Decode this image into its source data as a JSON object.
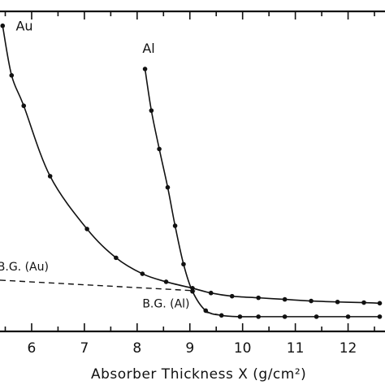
{
  "chart_data": {
    "type": "line",
    "xlabel": "Absorber Thickness X (g/cm²)",
    "x_tick_labels": [
      "6",
      "7",
      "8",
      "9",
      "10",
      "11",
      "12"
    ],
    "xlim": [
      5.4,
      12.7
    ],
    "ylim": [
      0,
      100
    ],
    "grid": false,
    "series": [
      {
        "name": "Au",
        "style": "solid-with-points",
        "x": [
          5.45,
          5.62,
          5.85,
          6.35,
          7.05,
          7.6,
          8.1,
          8.55,
          9.05,
          9.4,
          9.8,
          10.3,
          10.8,
          11.3,
          11.8,
          12.3,
          12.6
        ],
        "y": [
          95.5,
          80.0,
          70.5,
          48.5,
          32.0,
          23.0,
          18.0,
          15.5,
          13.5,
          12.0,
          11.0,
          10.5,
          10.0,
          9.5,
          9.2,
          9.0,
          8.8
        ]
      },
      {
        "name": "Al",
        "style": "solid-with-points",
        "x": [
          8.15,
          8.27,
          8.42,
          8.58,
          8.72,
          8.88,
          9.05,
          9.3,
          9.6,
          9.95,
          10.3,
          10.8,
          11.4,
          12.0,
          12.6
        ],
        "y": [
          82.0,
          69.0,
          57.0,
          45.0,
          33.0,
          21.0,
          12.5,
          6.5,
          5.0,
          4.6,
          4.6,
          4.6,
          4.6,
          4.6,
          4.6
        ]
      },
      {
        "name": "B.G. (Au)",
        "style": "dashed",
        "x": [
          5.4,
          9.1
        ],
        "y": [
          16.0,
          12.7
        ]
      },
      {
        "name": "B.G. (Al)",
        "style": "dashed",
        "x": [
          9.3,
          9.6
        ],
        "y": [
          6.0,
          5.0
        ]
      }
    ],
    "annotations": [
      {
        "text": "Au",
        "x": 5.7,
        "y": 94
      },
      {
        "text": "Al",
        "x": 8.1,
        "y": 87
      },
      {
        "text": "B.G. (Au)",
        "x": 5.35,
        "y": 19
      },
      {
        "text": "B.G. (Al)",
        "x": 8.1,
        "y": 7.5
      }
    ]
  }
}
